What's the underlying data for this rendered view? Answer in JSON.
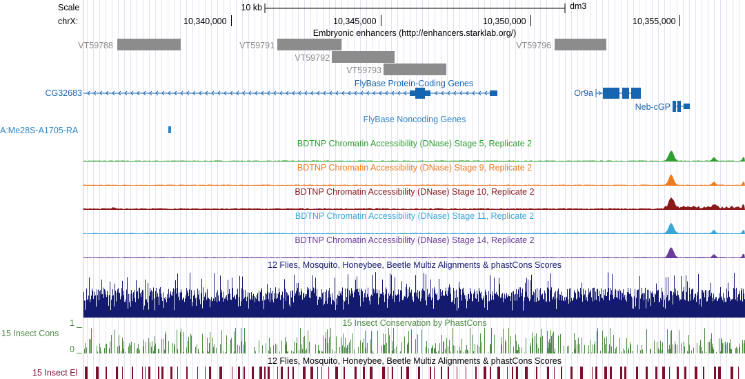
{
  "scale_row": {
    "label": "Scale",
    "bar_text": "10 kb",
    "assembly": "dm3"
  },
  "chrom_row": {
    "label": "chrX:",
    "ticks": [
      "10,340,000",
      "10,345,000",
      "10,350,000",
      "10,355,000"
    ]
  },
  "tracks": {
    "enhancers": {
      "title": "Embryonic enhancers (http://enhancers.starklab.org/)",
      "items": [
        "VT59788",
        "VT59791",
        "VT59792",
        "VT59793",
        "VT59796"
      ],
      "color": "#8c8c8c"
    },
    "protein_coding": {
      "title": "FlyBase Protein-Coding Genes",
      "genes": [
        "CG32683",
        "Or9a",
        "Neb-cGP"
      ],
      "color": "#1565b0"
    },
    "noncoding": {
      "title": "FlyBase Noncoding Genes",
      "genes": [
        "A:Me28S-A1705-RA"
      ],
      "color": "#2e86c8"
    },
    "dnase": [
      {
        "title": "BDTNP Chromatin Accessibility (DNase) Stage 5, Replicate 2",
        "color": "#2fa02f"
      },
      {
        "title": "BDTNP Chromatin Accessibility (DNase) Stage 9, Replicate 2",
        "color": "#ee7a1e"
      },
      {
        "title": "BDTNP Chromatin Accessibility (DNase) Stage 10, Replicate 2",
        "color": "#8b1a1a"
      },
      {
        "title": "BDTNP Chromatin Accessibility (DNase) Stage 11, Replicate 2",
        "color": "#3aa6d8"
      },
      {
        "title": "BDTNP Chromatin Accessibility (DNase) Stage 14, Replicate 2",
        "color": "#6a3d9a"
      }
    ],
    "multiz": {
      "title": "12 Flies, Mosquito, Honeybee, Beetle Multiz Alignments & phastCons Scores",
      "color": "#141a6e"
    },
    "phastcons": {
      "title": "15 Insect Conservation by PhastCons",
      "label": "15 Insect Cons",
      "ymax": "1",
      "ymin": "0",
      "color": "#4f8a43"
    },
    "elements": {
      "title": "12 Flies, Mosquito, Honeybee, Beetle Multiz Alignments & phastCons Scores",
      "label": "15 Insect El",
      "color": "#7d0f2e"
    }
  }
}
